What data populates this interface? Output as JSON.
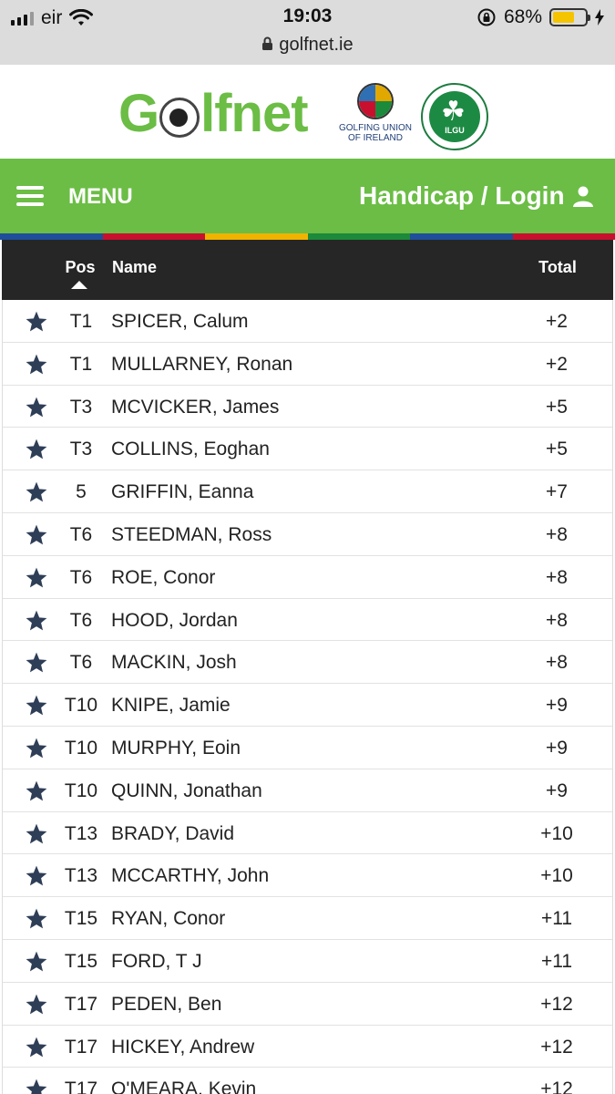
{
  "status_bar": {
    "carrier": "eir",
    "time": "19:03",
    "url": "golfnet.ie",
    "battery": "68%",
    "battery_level": 0.68
  },
  "header": {
    "logo_text_left": "G",
    "logo_text_right": "lfnet",
    "gui_line1": "GOLFING UNION",
    "gui_line2": "OF IRELAND",
    "ilgu_text": "ILGU"
  },
  "nav": {
    "menu_label": "MENU",
    "login_label": "Handicap / Login"
  },
  "colors": {
    "brand_green": "#6bbd45",
    "strip": [
      "#1f4e9a",
      "#c8102e",
      "#f0b400",
      "#1b8a3a",
      "#1f4e9a",
      "#c8102e"
    ]
  },
  "table": {
    "headers": {
      "pos": "Pos",
      "name": "Name",
      "total": "Total"
    },
    "sort": {
      "column": "pos",
      "direction": "ascending"
    },
    "rows": [
      {
        "pos": "T1",
        "name": "SPICER, Calum",
        "total": "+2"
      },
      {
        "pos": "T1",
        "name": "MULLARNEY, Ronan",
        "total": "+2"
      },
      {
        "pos": "T3",
        "name": "MCVICKER, James",
        "total": "+5"
      },
      {
        "pos": "T3",
        "name": "COLLINS, Eoghan",
        "total": "+5"
      },
      {
        "pos": "5",
        "name": "GRIFFIN, Eanna",
        "total": "+7"
      },
      {
        "pos": "T6",
        "name": "STEEDMAN, Ross",
        "total": "+8"
      },
      {
        "pos": "T6",
        "name": "ROE, Conor",
        "total": "+8"
      },
      {
        "pos": "T6",
        "name": "HOOD, Jordan",
        "total": "+8"
      },
      {
        "pos": "T6",
        "name": "MACKIN, Josh",
        "total": "+8"
      },
      {
        "pos": "T10",
        "name": "KNIPE, Jamie",
        "total": "+9"
      },
      {
        "pos": "T10",
        "name": "MURPHY, Eoin",
        "total": "+9"
      },
      {
        "pos": "T10",
        "name": "QUINN, Jonathan",
        "total": "+9"
      },
      {
        "pos": "T13",
        "name": "BRADY, David",
        "total": "+10"
      },
      {
        "pos": "T13",
        "name": "MCCARTHY, John",
        "total": "+10"
      },
      {
        "pos": "T15",
        "name": "RYAN, Conor",
        "total": "+11"
      },
      {
        "pos": "T15",
        "name": "FORD, T J",
        "total": "+11"
      },
      {
        "pos": "T17",
        "name": "PEDEN, Ben",
        "total": "+12"
      },
      {
        "pos": "T17",
        "name": "HICKEY, Andrew",
        "total": "+12"
      },
      {
        "pos": "T17",
        "name": "O'MEARA, Kevin",
        "total": "+12"
      }
    ]
  }
}
